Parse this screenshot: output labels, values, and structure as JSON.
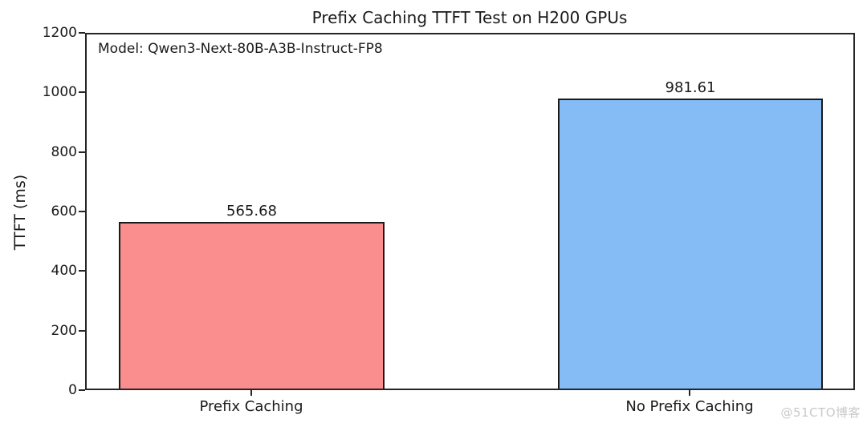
{
  "chart_data": {
    "type": "bar",
    "title": "Prefix Caching TTFT Test on H200 GPUs",
    "annotation": "Model: Qwen3-Next-80B-A3B-Instruct-FP8",
    "categories": [
      "Prefix Caching",
      "No Prefix Caching"
    ],
    "values": [
      565.68,
      981.61
    ],
    "value_labels": [
      "565.68",
      "981.61"
    ],
    "bar_colors": [
      "#fa8e8e",
      "#85bcf5"
    ],
    "bar_edge_color": "#1a1a1a",
    "xlabel": "",
    "ylabel": "TTFT (ms)",
    "ylim": [
      0,
      1200
    ],
    "yticks": [
      "0",
      "200",
      "400",
      "600",
      "800",
      "1000",
      "1200"
    ],
    "grid": false,
    "legend": "none",
    "background": "#ffffff",
    "spine_color": "#262626"
  },
  "watermark": {
    "text": "@51CTO博客",
    "color": "#c9c9c9"
  }
}
